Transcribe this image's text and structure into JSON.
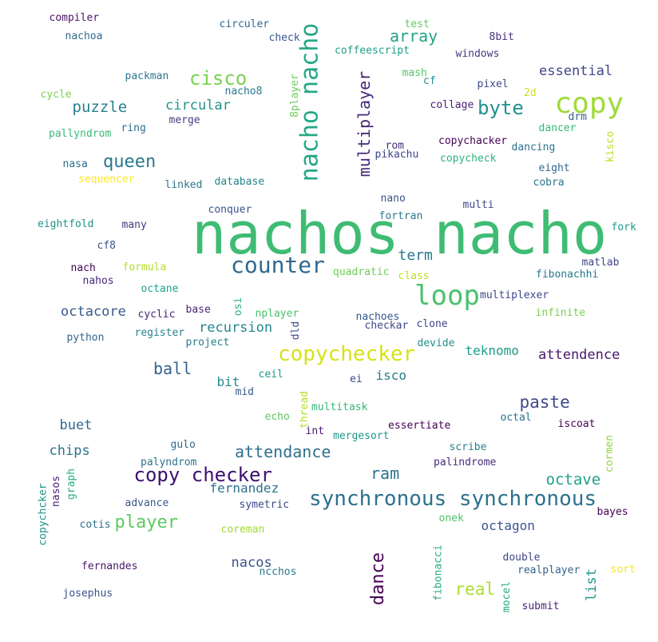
{
  "words": [
    {
      "t": "nachos nacho",
      "c": "#3fbc73"
    },
    {
      "t": "synchronous synchronous",
      "c": "#2c728e"
    },
    {
      "t": "nacho nacho",
      "c": "#22a884"
    },
    {
      "t": "copychecker",
      "c": "#d8e219"
    },
    {
      "t": "copy",
      "c": "#9fda3a"
    },
    {
      "t": "counter",
      "c": "#31688e"
    },
    {
      "t": "loop",
      "c": "#4ac16d"
    },
    {
      "t": "copy checker",
      "c": "#3b0f70"
    },
    {
      "t": "multiplayer",
      "c": "#482878"
    },
    {
      "t": "queen",
      "c": "#2a788e"
    },
    {
      "t": "cisco",
      "c": "#7ad151"
    },
    {
      "t": "byte",
      "c": "#21918c"
    },
    {
      "t": "attendance",
      "c": "#2d708e"
    },
    {
      "t": "dance",
      "c": "#440154"
    },
    {
      "t": "player",
      "c": "#5ec962"
    },
    {
      "t": "paste",
      "c": "#3e4a89"
    },
    {
      "t": "array",
      "c": "#20a486"
    },
    {
      "t": "puzzle",
      "c": "#27808e"
    },
    {
      "t": "octave",
      "c": "#1fa088"
    },
    {
      "t": "ram",
      "c": "#2c728e"
    },
    {
      "t": "real",
      "c": "#addc30"
    },
    {
      "t": "ball",
      "c": "#33638d"
    },
    {
      "t": "octacore",
      "c": "#38598c"
    },
    {
      "t": "attendence",
      "c": "#481769"
    },
    {
      "t": "recursion",
      "c": "#25848e"
    },
    {
      "t": "circular",
      "c": "#21918c"
    },
    {
      "t": "term",
      "c": "#2a788e"
    },
    {
      "t": "teknomo",
      "c": "#1e9c89"
    },
    {
      "t": "fernandez",
      "c": "#2d708e"
    },
    {
      "t": "nacos",
      "c": "#3b528b"
    },
    {
      "t": "chips",
      "c": "#2c728e"
    },
    {
      "t": "essential",
      "c": "#404688"
    },
    {
      "t": "octagon",
      "c": "#39558c"
    },
    {
      "t": "buet",
      "c": "#31688e"
    },
    {
      "t": "bit",
      "c": "#23898e"
    },
    {
      "t": "isco",
      "c": "#287d8e"
    },
    {
      "t": "list",
      "c": "#1f988b"
    },
    {
      "t": "fibonacci",
      "c": "#29af7f"
    },
    {
      "t": "compiler",
      "c": "#471365"
    },
    {
      "t": "nachoa",
      "c": "#2f6c8e"
    },
    {
      "t": "circuler",
      "c": "#31688e"
    },
    {
      "t": "check",
      "c": "#3a548c"
    },
    {
      "t": "test",
      "c": "#5ec962"
    },
    {
      "t": "8bit",
      "c": "#463480"
    },
    {
      "t": "coffeescript",
      "c": "#1f9e89"
    },
    {
      "t": "windows",
      "c": "#453781"
    },
    {
      "t": "packman",
      "c": "#2a788e"
    },
    {
      "t": "mash",
      "c": "#52c569"
    },
    {
      "t": "cycle",
      "c": "#7ad151"
    },
    {
      "t": "nacho8",
      "c": "#2a788e"
    },
    {
      "t": "8player",
      "c": "#6ece58"
    },
    {
      "t": "cf",
      "c": "#228d8d"
    },
    {
      "t": "pixel",
      "c": "#3e4989"
    },
    {
      "t": "2d",
      "c": "#d0e11c"
    },
    {
      "t": "collage",
      "c": "#481f71"
    },
    {
      "t": "drm",
      "c": "#34618d"
    },
    {
      "t": "merge",
      "c": "#424086"
    },
    {
      "t": "ring",
      "c": "#2e6e8e"
    },
    {
      "t": "dancer",
      "c": "#35b779"
    },
    {
      "t": "pallyndrom",
      "c": "#38b977"
    },
    {
      "t": "copychacker",
      "c": "#440154"
    },
    {
      "t": "kisco",
      "c": "#bddf26"
    },
    {
      "t": "rom",
      "c": "#472c7a"
    },
    {
      "t": "dancing",
      "c": "#2c728e"
    },
    {
      "t": "pikachu",
      "c": "#404588"
    },
    {
      "t": "copycheck",
      "c": "#2db27d"
    },
    {
      "t": "nasa",
      "c": "#2d708e"
    },
    {
      "t": "eight",
      "c": "#31688e"
    },
    {
      "t": "sequencer",
      "c": "#fde725"
    },
    {
      "t": "linked",
      "c": "#2a788e"
    },
    {
      "t": "database",
      "c": "#25848e"
    },
    {
      "t": "cobra",
      "c": "#2a768e"
    },
    {
      "t": "nano",
      "c": "#3b528b"
    },
    {
      "t": "conquer",
      "c": "#3a548c"
    },
    {
      "t": "multi",
      "c": "#3e4989"
    },
    {
      "t": "fortran",
      "c": "#2a788e"
    },
    {
      "t": "eightfold",
      "c": "#21918c"
    },
    {
      "t": "many",
      "c": "#453882"
    },
    {
      "t": "fork",
      "c": "#1f9a8a"
    },
    {
      "t": "cf8",
      "c": "#3b528b"
    },
    {
      "t": "formula",
      "c": "#b8de29"
    },
    {
      "t": "nach",
      "c": "#440154"
    },
    {
      "t": "matlab",
      "c": "#404688"
    },
    {
      "t": "quadratic",
      "c": "#6ece58"
    },
    {
      "t": "class",
      "c": "#bddf26"
    },
    {
      "t": "fibonachhi",
      "c": "#2a788e"
    },
    {
      "t": "nahos",
      "c": "#472a7a"
    },
    {
      "t": "octane",
      "c": "#1fa188"
    },
    {
      "t": "multiplexer",
      "c": "#3f4788"
    },
    {
      "t": "osi",
      "c": "#2eb37c"
    },
    {
      "t": "nplayer",
      "c": "#4ac16d"
    },
    {
      "t": "cyclic",
      "c": "#482475"
    },
    {
      "t": "base",
      "c": "#481f70"
    },
    {
      "t": "nachoes",
      "c": "#39568c"
    },
    {
      "t": "infinite",
      "c": "#7ad151"
    },
    {
      "t": "checkar",
      "c": "#3e4a89"
    },
    {
      "t": "clone",
      "c": "#414487"
    },
    {
      "t": "dld",
      "c": "#3d4d8a"
    },
    {
      "t": "python",
      "c": "#31688e"
    },
    {
      "t": "register",
      "c": "#27808e"
    },
    {
      "t": "project",
      "c": "#287c8e"
    },
    {
      "t": "devide",
      "c": "#21908d"
    },
    {
      "t": "ceil",
      "c": "#1e9b8a"
    },
    {
      "t": "ei",
      "c": "#404688"
    },
    {
      "t": "mid",
      "c": "#38588c"
    },
    {
      "t": "thread",
      "c": "#b5de2b"
    },
    {
      "t": "echo",
      "c": "#5ec962"
    },
    {
      "t": "multitask",
      "c": "#35b779"
    },
    {
      "t": "int",
      "c": "#481b6d"
    },
    {
      "t": "essertiate",
      "c": "#440154"
    },
    {
      "t": "octal",
      "c": "#2c728e"
    },
    {
      "t": "iscoat",
      "c": "#440154"
    },
    {
      "t": "mergesort",
      "c": "#1f9a8a"
    },
    {
      "t": "gulo",
      "c": "#31688e"
    },
    {
      "t": "scribe",
      "c": "#26818e"
    },
    {
      "t": "cormen",
      "c": "#90d743"
    },
    {
      "t": "palyndrom",
      "c": "#2c728e"
    },
    {
      "t": "palindrome",
      "c": "#472c7a"
    },
    {
      "t": "copychcker",
      "c": "#21918c"
    },
    {
      "t": "nasos",
      "c": "#482475"
    },
    {
      "t": "graph",
      "c": "#26ad81"
    },
    {
      "t": "advance",
      "c": "#38588c"
    },
    {
      "t": "symetric",
      "c": "#404688"
    },
    {
      "t": "bayes",
      "c": "#440154"
    },
    {
      "t": "cotis",
      "c": "#2c718e"
    },
    {
      "t": "coreman",
      "c": "#a2da37"
    },
    {
      "t": "onek",
      "c": "#4ec36b"
    },
    {
      "t": "fernandes",
      "c": "#48186a"
    },
    {
      "t": "ncchos",
      "c": "#2a778e"
    },
    {
      "t": "double",
      "c": "#404588"
    },
    {
      "t": "realplayer",
      "c": "#34618d"
    },
    {
      "t": "sort",
      "c": "#f6e620"
    },
    {
      "t": "mocel",
      "c": "#26ad81"
    },
    {
      "t": "josephus",
      "c": "#3b528b"
    },
    {
      "t": "submit",
      "c": "#482475"
    }
  ]
}
